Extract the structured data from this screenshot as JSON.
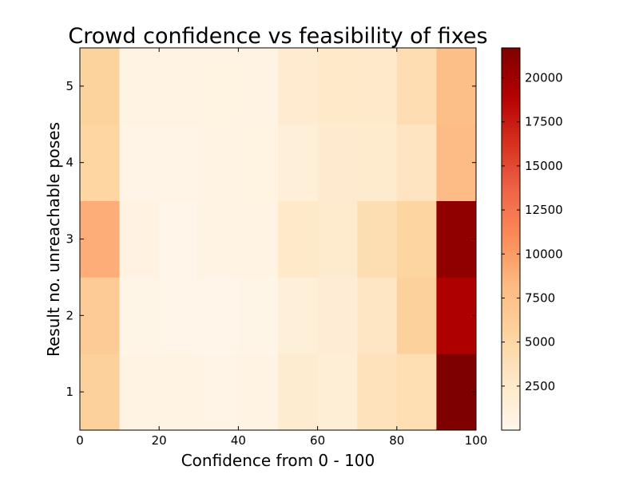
{
  "chart_data": {
    "type": "heatmap",
    "title": "Crowd confidence vs feasibility of fixes",
    "xlabel": "Confidence from 0 - 100",
    "ylabel": "Result no. unreachable poses",
    "xlim": [
      0,
      100
    ],
    "ylim": [
      0.5,
      5.5
    ],
    "x_ticks": [
      0,
      20,
      40,
      60,
      80,
      100
    ],
    "y_ticks": [
      1,
      2,
      3,
      4,
      5
    ],
    "x_bins": [
      0,
      10,
      20,
      30,
      40,
      50,
      60,
      70,
      80,
      90,
      100
    ],
    "y_categories": [
      1,
      2,
      3,
      4,
      5
    ],
    "values": [
      [
        5700,
        700,
        700,
        500,
        600,
        2000,
        1700,
        3500,
        4000,
        21700
      ],
      [
        6300,
        400,
        200,
        200,
        400,
        1500,
        1800,
        3000,
        5700,
        19200
      ],
      [
        8900,
        900,
        300,
        700,
        700,
        2600,
        2400,
        4100,
        5300,
        20800
      ],
      [
        5200,
        500,
        500,
        600,
        800,
        1400,
        2200,
        2300,
        3200,
        8000
      ],
      [
        5500,
        600,
        600,
        800,
        700,
        2100,
        2600,
        2500,
        4200,
        7700
      ]
    ],
    "colormap": "OrRd-dark",
    "colorbar": {
      "min": 0,
      "max": 21700,
      "ticks": [
        2500,
        5000,
        7500,
        10000,
        12500,
        15000,
        17500,
        20000
      ]
    },
    "grid": false,
    "legend": "colorbar-right"
  }
}
